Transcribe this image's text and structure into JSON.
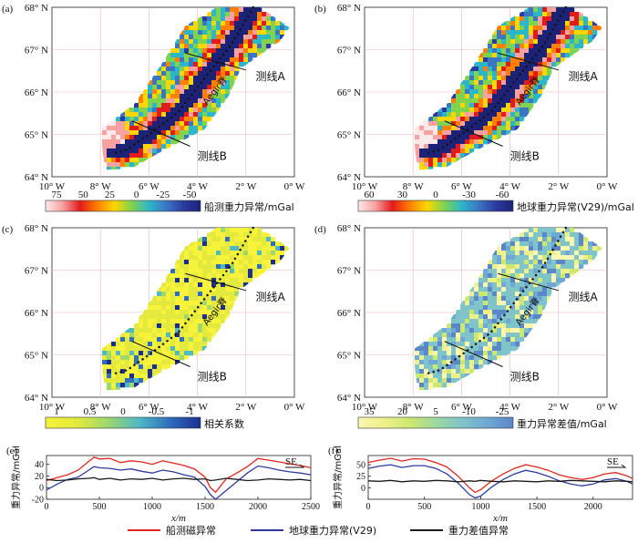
{
  "panels": [
    {
      "id": "a",
      "label": "(a)",
      "lat_ticks": [
        "68° N",
        "67° N",
        "66° N",
        "65° N",
        "64° N"
      ],
      "lon_ticks": [
        "10° W",
        "8° W",
        "6° W",
        "4° W",
        "2° W",
        "0° W"
      ],
      "profile_a": "测线A",
      "profile_b": "测线B",
      "ridge": "Aegir脊",
      "colorbar": {
        "title": "船测重力异常/mGal",
        "ticks": [
          "75",
          "50",
          "25",
          "0",
          "-25",
          "-50"
        ],
        "colors": [
          "#fde9e9",
          "#f7a1a1",
          "#e31a1c",
          "#ff7f00",
          "#ffd700",
          "#7fd34e",
          "#2bb7c9",
          "#3b76c4",
          "#2b3ba0",
          "#1c2377"
        ]
      },
      "style": "gravity"
    },
    {
      "id": "b",
      "label": "(b)",
      "lat_ticks": [
        "68° N",
        "67° N",
        "66° N",
        "65° N",
        "64° N"
      ],
      "lon_ticks": [
        "10° W",
        "8° W",
        "6° W",
        "4° W",
        "2° W",
        "0° W"
      ],
      "profile_a": "测线A",
      "profile_b": "测线B",
      "ridge": "Aegir脊",
      "colorbar": {
        "title": "地球重力异常(V29)/mGal",
        "ticks": [
          "60",
          "30",
          "0",
          "-30",
          "-60"
        ],
        "colors": [
          "#fde9e9",
          "#f7a1a1",
          "#e31a1c",
          "#ff7f00",
          "#ffd700",
          "#7fd34e",
          "#2bb7c9",
          "#3b76c4",
          "#2b3ba0",
          "#1c2377"
        ]
      },
      "style": "gravity"
    },
    {
      "id": "c",
      "label": "(c)",
      "lat_ticks": [
        "68° N",
        "67° N",
        "66° N",
        "65° N",
        "64° N"
      ],
      "lon_ticks": [
        "10° W",
        "8° W",
        "6° W",
        "4° W",
        "2° W",
        "0° W"
      ],
      "profile_a": "测线A",
      "profile_b": "测线B",
      "ridge": "Aegir脊",
      "colorbar": {
        "title": "相关系数",
        "ticks": [
          "1",
          "0.5",
          "0",
          "-0.5",
          "-1"
        ],
        "colors": [
          "#f7f23a",
          "#e3ea3d",
          "#9fd86b",
          "#4fb9c4",
          "#2f6fbd",
          "#1c2f8f"
        ]
      },
      "style": "corr"
    },
    {
      "id": "d",
      "label": "(d)",
      "lat_ticks": [
        "68° N",
        "67° N",
        "66° N",
        "65° N",
        "64° N"
      ],
      "lon_ticks": [
        "10° W",
        "8° W",
        "6° W",
        "4° W",
        "2° W",
        "0° W"
      ],
      "profile_a": "测线A",
      "profile_b": "测线B",
      "ridge": "Aegir脊",
      "colorbar": {
        "title": "重力异常差值/mGal",
        "ticks": [
          "35",
          "20",
          "5",
          "-10",
          "-25"
        ],
        "colors": [
          "#fbf6b0",
          "#eef08a",
          "#cde86f",
          "#9fd8a0",
          "#7fc4c9",
          "#6fa8d6",
          "#5b86c8"
        ]
      },
      "style": "diff"
    }
  ],
  "profiles": [
    {
      "label": "(e)",
      "ylabel": "重力异常/mGal",
      "xlabel": "x/m",
      "direction": "SE",
      "x_ticks": [
        "0",
        "500",
        "1000",
        "1500",
        "2000",
        "2500"
      ],
      "y_ticks": [
        "40",
        "20",
        "0",
        "-20"
      ],
      "xlim": [
        0,
        2500
      ],
      "ylim": [
        -20,
        55
      ],
      "series": [
        {
          "key": "ship",
          "color": "#e0261f",
          "x": [
            0,
            100,
            200,
            300,
            400,
            450,
            500,
            600,
            700,
            800,
            900,
            1000,
            1100,
            1200,
            1300,
            1400,
            1500,
            1550,
            1600,
            1700,
            1800,
            1900,
            2000,
            2100,
            2200,
            2300,
            2400,
            2500
          ],
          "y": [
            12,
            17,
            22,
            30,
            45,
            52,
            49,
            50,
            43,
            46,
            44,
            40,
            46,
            42,
            38,
            32,
            18,
            0,
            -8,
            15,
            25,
            36,
            50,
            47,
            44,
            41,
            38,
            34
          ]
        },
        {
          "key": "v29",
          "color": "#2f3aa0",
          "x": [
            0,
            100,
            200,
            300,
            400,
            450,
            500,
            600,
            700,
            800,
            900,
            1000,
            1100,
            1200,
            1300,
            1400,
            1500,
            1550,
            1600,
            1700,
            1800,
            1900,
            2000,
            2100,
            2200,
            2300,
            2400,
            2500
          ],
          "y": [
            -4,
            6,
            14,
            18,
            30,
            36,
            34,
            33,
            30,
            32,
            28,
            25,
            30,
            27,
            22,
            18,
            2,
            -12,
            -20,
            -5,
            10,
            25,
            37,
            34,
            30,
            27,
            25,
            22
          ]
        },
        {
          "key": "diff",
          "color": "#1a1a1a",
          "x": [
            0,
            100,
            200,
            300,
            400,
            450,
            500,
            600,
            700,
            800,
            900,
            1000,
            1100,
            1200,
            1300,
            1400,
            1500,
            1550,
            1600,
            1700,
            1800,
            1900,
            2000,
            2100,
            2200,
            2300,
            2400,
            2500
          ],
          "y": [
            14,
            12,
            13,
            15,
            16,
            17,
            14,
            16,
            13,
            15,
            14,
            16,
            13,
            15,
            16,
            14,
            15,
            12,
            13,
            16,
            14,
            12,
            13,
            15,
            14,
            13,
            14,
            12
          ]
        }
      ]
    },
    {
      "label": "(f)",
      "ylabel": "重力异常/mGal",
      "xlabel": "x/m",
      "direction": "SE",
      "x_ticks": [
        "0",
        "500",
        "1000",
        "1500",
        "2000"
      ],
      "y_ticks": [
        "50",
        "25",
        "0"
      ],
      "xlim": [
        0,
        2350
      ],
      "ylim": [
        -25,
        70
      ],
      "series": [
        {
          "key": "ship",
          "color": "#e0261f",
          "x": [
            0,
            100,
            200,
            300,
            400,
            500,
            600,
            700,
            800,
            900,
            950,
            1000,
            1100,
            1200,
            1300,
            1400,
            1500,
            1600,
            1700,
            1800,
            1900,
            2000,
            2100,
            2200,
            2300,
            2350
          ],
          "y": [
            55,
            60,
            64,
            58,
            63,
            62,
            55,
            45,
            25,
            0,
            -10,
            -4,
            15,
            30,
            42,
            50,
            45,
            38,
            28,
            22,
            18,
            22,
            30,
            33,
            26,
            20
          ]
        },
        {
          "key": "v29",
          "color": "#2f3aa0",
          "x": [
            0,
            100,
            200,
            300,
            400,
            500,
            600,
            700,
            800,
            900,
            950,
            1000,
            1100,
            1200,
            1300,
            1400,
            1500,
            1600,
            1700,
            1800,
            1900,
            2000,
            2100,
            2200,
            2300,
            2350
          ],
          "y": [
            42,
            47,
            50,
            44,
            48,
            48,
            42,
            30,
            10,
            -15,
            -22,
            -18,
            2,
            18,
            30,
            38,
            33,
            25,
            15,
            8,
            4,
            8,
            17,
            20,
            14,
            8
          ]
        },
        {
          "key": "diff",
          "color": "#1a1a1a",
          "x": [
            0,
            100,
            200,
            300,
            400,
            500,
            600,
            700,
            800,
            900,
            950,
            1000,
            1100,
            1200,
            1300,
            1400,
            1500,
            1600,
            1700,
            1800,
            1900,
            2000,
            2100,
            2200,
            2300,
            2350
          ],
          "y": [
            15,
            14,
            16,
            13,
            15,
            14,
            16,
            15,
            13,
            15,
            14,
            16,
            14,
            13,
            15,
            14,
            13,
            15,
            14,
            16,
            15,
            14,
            13,
            15,
            14,
            13
          ]
        }
      ]
    }
  ],
  "legend": [
    {
      "label": "船测磁异常",
      "color": "#e0261f"
    },
    {
      "label": "地球重力异常(V29)",
      "color": "#2f3aa0"
    },
    {
      "label": "重力差值异常",
      "color": "#1a1a1a"
    }
  ]
}
